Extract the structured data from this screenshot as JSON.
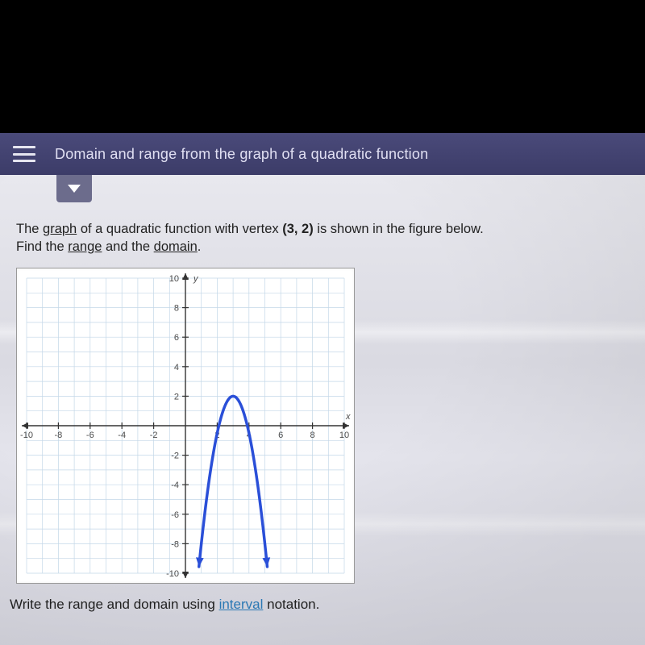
{
  "header": {
    "title": "Domain and range from the graph of a quadratic function"
  },
  "problem": {
    "line1_pre": "The ",
    "graph_word": "graph",
    "line1_mid": " of a quadratic function with vertex ",
    "vertex": "(3, 2)",
    "line1_post": " is shown in the figure below.",
    "line2_pre": "Find the ",
    "range_word": "range",
    "line2_mid": " and the ",
    "domain_word": "domain",
    "line2_post": "."
  },
  "instruction": {
    "pre": "Write the range and domain using ",
    "link": "interval",
    "post": " notation."
  },
  "chart": {
    "type": "parabola",
    "xlim": [
      -10,
      10
    ],
    "ylim": [
      -10,
      10
    ],
    "tick_step": 2,
    "xticks": [
      -10,
      -8,
      -6,
      -4,
      -2,
      2,
      4,
      6,
      8,
      10
    ],
    "yticks": [
      -10,
      -8,
      -6,
      -4,
      -2,
      2,
      4,
      6,
      8,
      10
    ],
    "x_label": "x",
    "y_label": "y",
    "grid_color": "#c3d7e8",
    "axis_color": "#333333",
    "background_color": "#ffffff",
    "curve_color": "#2a4fd8",
    "curve_width": 3.5,
    "tick_label_color": "#4a4a4a",
    "tick_fontsize": 11,
    "axis_label_fontsize": 11,
    "vertex": [
      3,
      2
    ],
    "coefficient_a": -2.5,
    "x_draw_min": 0.85,
    "x_draw_max": 5.15,
    "arrow_head_size": 7
  }
}
